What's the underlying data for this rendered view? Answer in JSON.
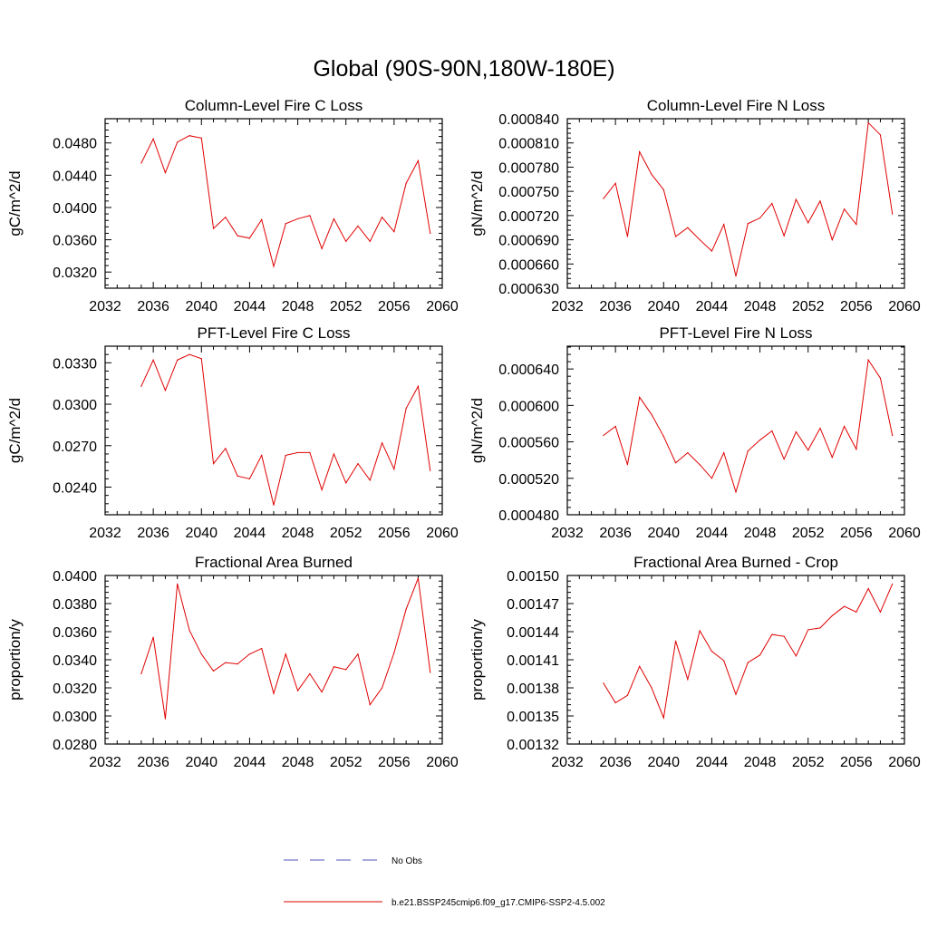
{
  "page_title": "Global (90S-90N,180W-180E)",
  "legend": {
    "entries": [
      {
        "label": "No Obs",
        "color": "#5050c0",
        "style": "dashed"
      },
      {
        "label": "b.e21.BSSP245cmip6.f09_g17.CMIP6-SSP2-4.5.002",
        "color": "#e00000",
        "style": "solid"
      }
    ]
  },
  "chart_data": [
    {
      "type": "line",
      "title": "Column-Level Fire C Loss",
      "ylabel": "gC/m^2/d",
      "xlim": [
        2032,
        2060
      ],
      "ylim": [
        0.03,
        0.051
      ],
      "x_ticks": [
        "2032",
        "2036",
        "2040",
        "2044",
        "2048",
        "2052",
        "2056",
        "2060"
      ],
      "y_ticks": [
        0.032,
        0.036,
        0.04,
        0.044,
        0.048
      ],
      "y_tick_labels": [
        "0.0320",
        "0.0360",
        "0.0400",
        "0.0440",
        "0.0480"
      ],
      "series": [
        {
          "color": "#e00000",
          "x": [
            2035,
            2036,
            2037,
            2038,
            2039,
            2040,
            2041,
            2042,
            2043,
            2044,
            2045,
            2046,
            2047,
            2048,
            2049,
            2050,
            2051,
            2052,
            2053,
            2054,
            2055,
            2056,
            2057,
            2058,
            2059
          ],
          "values": [
            0.0455,
            0.0485,
            0.0443,
            0.0481,
            0.0489,
            0.0486,
            0.0374,
            0.0388,
            0.0365,
            0.0362,
            0.0385,
            0.0327,
            0.038,
            0.0386,
            0.039,
            0.0349,
            0.0386,
            0.0358,
            0.0377,
            0.0358,
            0.0388,
            0.037,
            0.043,
            0.0458,
            0.0368
          ]
        }
      ]
    },
    {
      "type": "line",
      "title": "Column-Level Fire N Loss",
      "ylabel": "gN/m^2/d",
      "xlim": [
        2032,
        2060
      ],
      "ylim": [
        0.00063,
        0.00084
      ],
      "x_ticks": [
        "2032",
        "2036",
        "2040",
        "2044",
        "2048",
        "2052",
        "2056",
        "2060"
      ],
      "y_ticks": [
        0.00063,
        0.00066,
        0.00069,
        0.00072,
        0.00075,
        0.00078,
        0.00081,
        0.00084
      ],
      "y_tick_labels": [
        "0.000630",
        "0.000660",
        "0.000690",
        "0.000720",
        "0.000750",
        "0.000780",
        "0.000810",
        "0.000840"
      ],
      "series": [
        {
          "color": "#e00000",
          "x": [
            2035,
            2036,
            2037,
            2038,
            2039,
            2040,
            2041,
            2042,
            2043,
            2044,
            2045,
            2046,
            2047,
            2048,
            2049,
            2050,
            2051,
            2052,
            2053,
            2054,
            2055,
            2056,
            2057,
            2058,
            2059
          ],
          "values": [
            0.000741,
            0.00076,
            0.000694,
            0.000799,
            0.000771,
            0.000752,
            0.000694,
            0.000705,
            0.00069,
            0.000676,
            0.000709,
            0.000645,
            0.00071,
            0.000717,
            0.000735,
            0.000695,
            0.00074,
            0.000711,
            0.000738,
            0.00069,
            0.000728,
            0.000709,
            0.000835,
            0.00082,
            0.000722
          ]
        }
      ]
    },
    {
      "type": "line",
      "title": "PFT-Level Fire C Loss",
      "ylabel": "gC/m^2/d",
      "xlim": [
        2032,
        2060
      ],
      "ylim": [
        0.022,
        0.0342
      ],
      "x_ticks": [
        "2032",
        "2036",
        "2040",
        "2044",
        "2048",
        "2052",
        "2056",
        "2060"
      ],
      "y_ticks": [
        0.024,
        0.027,
        0.03,
        0.033
      ],
      "y_tick_labels": [
        "0.0240",
        "0.0270",
        "0.0300",
        "0.0330"
      ],
      "series": [
        {
          "color": "#e00000",
          "x": [
            2035,
            2036,
            2037,
            2038,
            2039,
            2040,
            2041,
            2042,
            2043,
            2044,
            2045,
            2046,
            2047,
            2048,
            2049,
            2050,
            2051,
            2052,
            2053,
            2054,
            2055,
            2056,
            2057,
            2058,
            2059
          ],
          "values": [
            0.0313,
            0.0332,
            0.031,
            0.0332,
            0.0336,
            0.0333,
            0.0257,
            0.0268,
            0.0248,
            0.0246,
            0.0263,
            0.0227,
            0.0263,
            0.0265,
            0.0265,
            0.0238,
            0.0264,
            0.0243,
            0.0257,
            0.0245,
            0.0272,
            0.0253,
            0.0297,
            0.0313,
            0.0252
          ]
        }
      ]
    },
    {
      "type": "line",
      "title": "PFT-Level Fire N Loss",
      "ylabel": "gN/m^2/d",
      "xlim": [
        2032,
        2060
      ],
      "ylim": [
        0.00048,
        0.000665
      ],
      "x_ticks": [
        "2032",
        "2036",
        "2040",
        "2044",
        "2048",
        "2052",
        "2056",
        "2060"
      ],
      "y_ticks": [
        0.00048,
        0.00052,
        0.00056,
        0.0006,
        0.00064
      ],
      "y_tick_labels": [
        "0.000480",
        "0.000520",
        "0.000560",
        "0.000600",
        "0.000640"
      ],
      "series": [
        {
          "color": "#e00000",
          "x": [
            2035,
            2036,
            2037,
            2038,
            2039,
            2040,
            2041,
            2042,
            2043,
            2044,
            2045,
            2046,
            2047,
            2048,
            2049,
            2050,
            2051,
            2052,
            2053,
            2054,
            2055,
            2056,
            2057,
            2058,
            2059
          ],
          "values": [
            0.000567,
            0.000577,
            0.000535,
            0.000609,
            0.00059,
            0.000566,
            0.000537,
            0.000548,
            0.000535,
            0.00052,
            0.000548,
            0.000505,
            0.00055,
            0.000562,
            0.000572,
            0.000541,
            0.000571,
            0.000551,
            0.000575,
            0.000543,
            0.000577,
            0.000552,
            0.00065,
            0.00063,
            0.000567
          ]
        }
      ]
    },
    {
      "type": "line",
      "title": "Fractional Area Burned",
      "ylabel": "proportion/y",
      "xlim": [
        2032,
        2060
      ],
      "ylim": [
        0.028,
        0.04
      ],
      "x_ticks": [
        "2032",
        "2036",
        "2040",
        "2044",
        "2048",
        "2052",
        "2056",
        "2060"
      ],
      "y_ticks": [
        0.028,
        0.03,
        0.032,
        0.034,
        0.036,
        0.038,
        0.04
      ],
      "y_tick_labels": [
        "0.0280",
        "0.0300",
        "0.0320",
        "0.0340",
        "0.0360",
        "0.0380",
        "0.0400"
      ],
      "series": [
        {
          "color": "#e00000",
          "x": [
            2035,
            2036,
            2037,
            2038,
            2039,
            2040,
            2041,
            2042,
            2043,
            2044,
            2045,
            2046,
            2047,
            2048,
            2049,
            2050,
            2051,
            2052,
            2053,
            2054,
            2055,
            2056,
            2057,
            2058,
            2059
          ],
          "values": [
            0.033,
            0.0356,
            0.0298,
            0.0394,
            0.0361,
            0.0344,
            0.0332,
            0.0338,
            0.0337,
            0.0344,
            0.0348,
            0.0316,
            0.0344,
            0.0318,
            0.033,
            0.0317,
            0.0335,
            0.0333,
            0.0344,
            0.0308,
            0.032,
            0.0345,
            0.0376,
            0.0398,
            0.0331
          ]
        }
      ]
    },
    {
      "type": "line",
      "title": "Fractional Area Burned - Crop",
      "ylabel": "proportion/y",
      "xlim": [
        2032,
        2060
      ],
      "ylim": [
        0.00132,
        0.0015
      ],
      "x_ticks": [
        "2032",
        "2036",
        "2040",
        "2044",
        "2048",
        "2052",
        "2056",
        "2060"
      ],
      "y_ticks": [
        0.00132,
        0.00135,
        0.00138,
        0.00141,
        0.00144,
        0.00147,
        0.0015
      ],
      "y_tick_labels": [
        "0.00132",
        "0.00135",
        "0.00138",
        "0.00141",
        "0.00144",
        "0.00147",
        "0.00150"
      ],
      "series": [
        {
          "color": "#e00000",
          "x": [
            2035,
            2036,
            2037,
            2038,
            2039,
            2040,
            2041,
            2042,
            2043,
            2044,
            2045,
            2046,
            2047,
            2048,
            2049,
            2050,
            2051,
            2052,
            2053,
            2054,
            2055,
            2056,
            2057,
            2058,
            2059
          ],
          "values": [
            0.001385,
            0.001364,
            0.001372,
            0.001403,
            0.00138,
            0.001348,
            0.00143,
            0.001389,
            0.001441,
            0.001419,
            0.001409,
            0.001373,
            0.001407,
            0.001415,
            0.001437,
            0.001435,
            0.001414,
            0.001442,
            0.001444,
            0.001457,
            0.001467,
            0.001461,
            0.001486,
            0.001461,
            0.001491
          ]
        }
      ]
    }
  ]
}
